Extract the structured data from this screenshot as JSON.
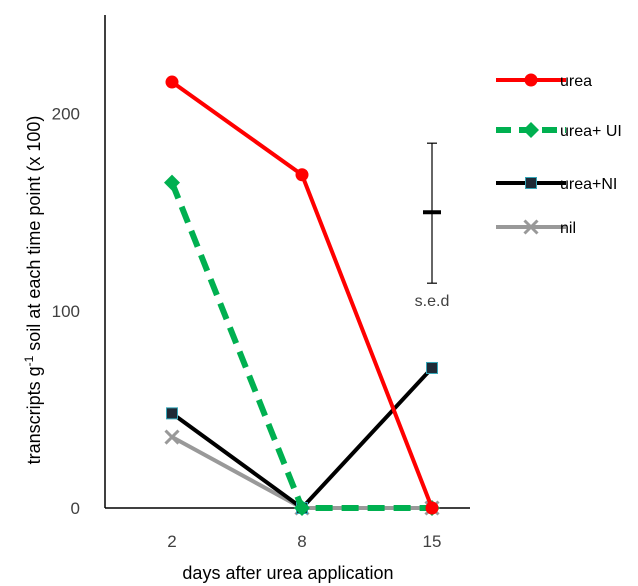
{
  "chart_data": {
    "type": "line",
    "categories": [
      "2",
      "8",
      "15"
    ],
    "ylim": [
      0,
      250
    ],
    "yticks": [
      0,
      100,
      200
    ],
    "xlabel": "days after urea application",
    "ylabel_parts": {
      "pre": "transcripts g",
      "sup": "-1",
      "post": " soil at each time point (x 100)"
    },
    "legend_position": "right",
    "series": [
      {
        "name": "urea",
        "values": [
          216,
          169,
          0
        ],
        "color": "#FF0000",
        "marker": "circle",
        "dash": "solid"
      },
      {
        "name": "urea+ UI",
        "values": [
          165,
          0,
          0
        ],
        "color": "#00B050",
        "marker": "diamond",
        "dash": "dashed"
      },
      {
        "name": "urea+NI",
        "values": [
          48,
          0,
          71
        ],
        "color": "#000000",
        "marker": "square",
        "dash": "solid"
      },
      {
        "name": "nil",
        "values": [
          36,
          0,
          0
        ],
        "color": "#999999",
        "marker": "x",
        "dash": "solid"
      }
    ],
    "error_bar": {
      "label": "s.e.d",
      "center": 150,
      "low": 114,
      "high": 185
    }
  }
}
